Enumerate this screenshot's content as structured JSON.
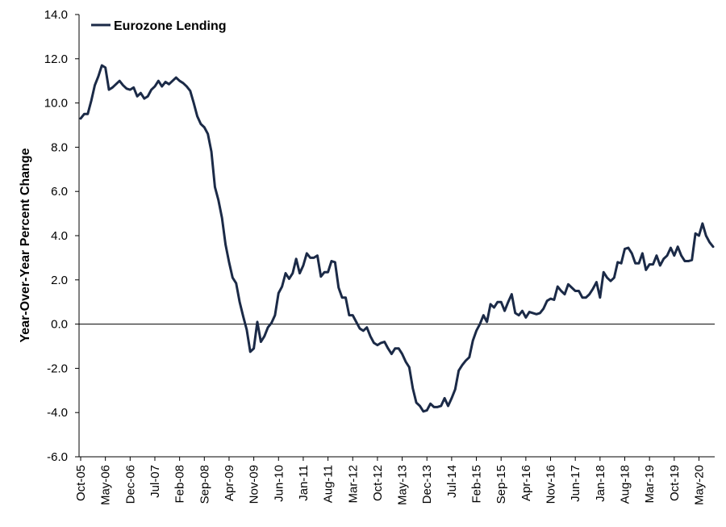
{
  "chart_data": {
    "type": "line",
    "title": "",
    "xlabel": "",
    "ylabel": "Year-Over-Year Percent Change",
    "ylim": [
      -6.0,
      14.0
    ],
    "y_ticks": [
      "14.0",
      "12.0",
      "10.0",
      "8.0",
      "6.0",
      "4.0",
      "2.0",
      "0.0",
      "-2.0",
      "-4.0",
      "-6.0"
    ],
    "x_tick_labels": [
      "Oct-05",
      "May-06",
      "Dec-06",
      "Jul-07",
      "Feb-08",
      "Sep-08",
      "Apr-09",
      "Nov-09",
      "Jun-10",
      "Jan-11",
      "Aug-11",
      "Mar-12",
      "Oct-12",
      "May-13",
      "Dec-13",
      "Jul-14",
      "Feb-15",
      "Sep-15",
      "Apr-16",
      "Nov-16",
      "Jun-17",
      "Jan-18",
      "Aug-18",
      "Mar-19",
      "Oct-19",
      "May-20"
    ],
    "x_start": "Oct-05",
    "legend_position": "top-left",
    "grid": false,
    "colors": {
      "series": "#1b2a47"
    },
    "series": [
      {
        "name": "Eurozone Lending",
        "values": [
          9.3,
          9.5,
          9.5,
          10.1,
          10.8,
          11.2,
          11.7,
          11.6,
          10.6,
          10.7,
          10.85,
          11.0,
          10.8,
          10.65,
          10.6,
          10.7,
          10.3,
          10.45,
          10.2,
          10.3,
          10.6,
          10.75,
          11.0,
          10.75,
          10.95,
          10.85,
          11.0,
          11.15,
          11.0,
          10.9,
          10.75,
          10.55,
          10.0,
          9.4,
          9.05,
          8.9,
          8.6,
          7.8,
          6.2,
          5.6,
          4.8,
          3.6,
          2.8,
          2.1,
          1.85,
          1.0,
          0.35,
          -0.25,
          -1.25,
          -1.1,
          0.1,
          -0.8,
          -0.55,
          -0.15,
          0.05,
          0.4,
          1.4,
          1.7,
          2.3,
          2.05,
          2.3,
          2.95,
          2.3,
          2.65,
          3.2,
          3.0,
          3.0,
          3.1,
          2.15,
          2.35,
          2.35,
          2.85,
          2.8,
          1.65,
          1.2,
          1.2,
          0.4,
          0.4,
          0.1,
          -0.2,
          -0.3,
          -0.15,
          -0.55,
          -0.85,
          -0.95,
          -0.85,
          -0.8,
          -1.1,
          -1.35,
          -1.1,
          -1.1,
          -1.35,
          -1.7,
          -1.95,
          -2.9,
          -3.55,
          -3.7,
          -3.95,
          -3.9,
          -3.6,
          -3.75,
          -3.75,
          -3.7,
          -3.35,
          -3.7,
          -3.35,
          -2.95,
          -2.1,
          -1.85,
          -1.65,
          -1.5,
          -0.75,
          -0.3,
          0.0,
          0.4,
          0.1,
          0.9,
          0.75,
          1.0,
          1.0,
          0.6,
          1.0,
          1.35,
          0.5,
          0.4,
          0.6,
          0.3,
          0.55,
          0.5,
          0.45,
          0.5,
          0.7,
          1.05,
          1.15,
          1.1,
          1.7,
          1.5,
          1.35,
          1.8,
          1.65,
          1.5,
          1.5,
          1.2,
          1.2,
          1.35,
          1.6,
          1.9,
          1.2,
          2.35,
          2.1,
          1.95,
          2.1,
          2.8,
          2.75,
          3.4,
          3.45,
          3.2,
          2.75,
          2.75,
          3.2,
          2.45,
          2.7,
          2.7,
          3.1,
          2.65,
          2.95,
          3.1,
          3.45,
          3.1,
          3.5,
          3.1,
          2.85,
          2.85,
          2.9,
          4.1,
          4.0,
          4.55,
          4.0,
          3.7,
          3.5
        ]
      }
    ]
  }
}
